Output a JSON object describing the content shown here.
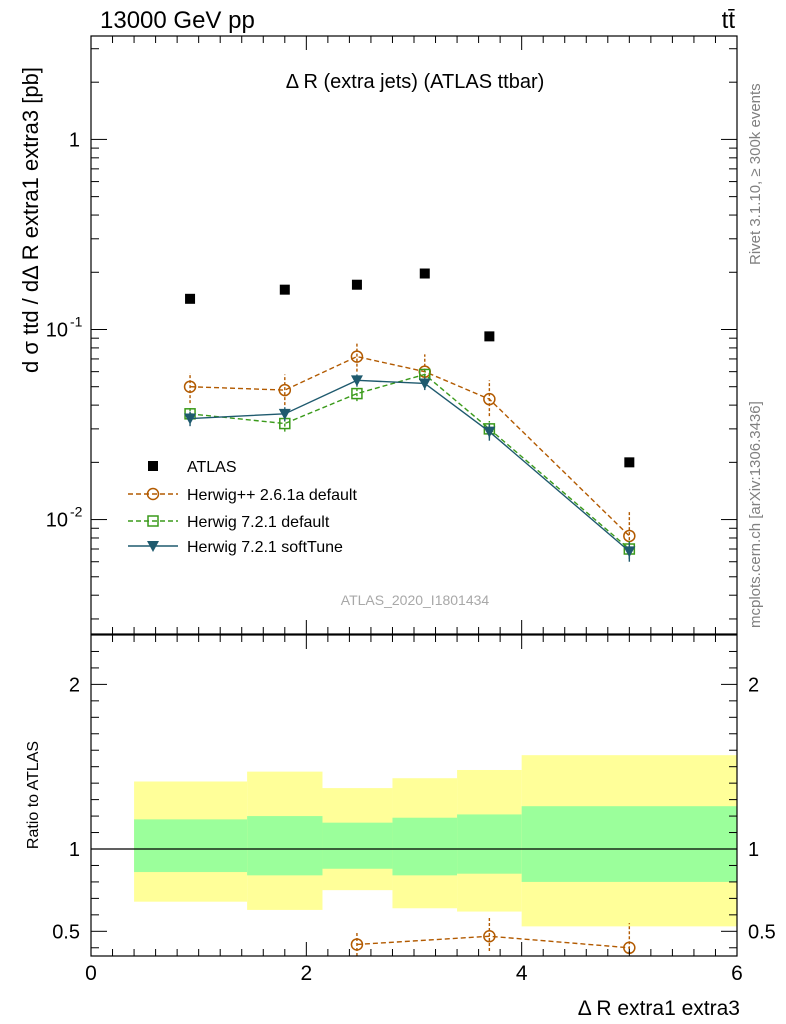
{
  "header": {
    "left": "13000 GeV pp",
    "right": "tt̄"
  },
  "side_text": {
    "rivet": "Rivet 3.1.10, ≥ 300k events",
    "mcplots": "mcplots.cern.ch [arXiv:1306.3436]"
  },
  "chart_data": {
    "type": "scatter",
    "title": "Δ R (extra jets) (ATLAS ttbar)",
    "watermark": "ATLAS_2020_I1801434",
    "xlabel": "Δ R extra1 extra3",
    "ylabel": "dσ ttd / dΔ R extra1 extra3 [pb]",
    "xlim": [
      0,
      6
    ],
    "ylim": [
      0.0025,
      3.5
    ],
    "y_scale": "log",
    "x_ticks": [
      "0",
      "2",
      "4",
      "6"
    ],
    "y_ticks": [
      "1",
      "10^-1",
      "10^-2"
    ],
    "legend_position": "left-middle",
    "bins": [
      [
        0.4,
        1.45
      ],
      [
        1.45,
        2.15
      ],
      [
        2.15,
        2.8
      ],
      [
        2.8,
        3.4
      ],
      [
        3.4,
        4.0
      ],
      [
        4.0,
        6.0
      ]
    ],
    "series": [
      {
        "name": "ATLAS",
        "color": "#000000",
        "marker": "filled-square",
        "line": "none",
        "x": [
          0.92,
          1.8,
          2.47,
          3.1,
          3.7,
          5.0
        ],
        "y": [
          0.145,
          0.162,
          0.172,
          0.197,
          0.092,
          0.02
        ]
      },
      {
        "name": "Herwig++ 2.6.1a default",
        "color": "#b25a00",
        "marker": "open-circle",
        "line": "dashed",
        "x": [
          0.92,
          1.8,
          2.47,
          3.1,
          3.7,
          5.0
        ],
        "y": [
          0.05,
          0.048,
          0.072,
          0.06,
          0.043,
          0.0082
        ],
        "yerr_low": [
          0.041,
          0.04,
          0.06,
          0.05,
          0.035,
          0.0065
        ],
        "yerr_high": [
          0.059,
          0.058,
          0.086,
          0.074,
          0.054,
          0.011
        ]
      },
      {
        "name": "Herwig 7.2.1 default",
        "color": "#3a9a1a",
        "marker": "open-square",
        "line": "dashed",
        "x": [
          0.92,
          1.8,
          2.47,
          3.1,
          3.7,
          5.0
        ],
        "y": [
          0.036,
          0.032,
          0.046,
          0.058,
          0.03,
          0.007
        ],
        "yerr_low": [
          0.033,
          0.029,
          0.042,
          0.053,
          0.027,
          0.0062
        ],
        "yerr_high": [
          0.039,
          0.035,
          0.05,
          0.063,
          0.033,
          0.0078
        ]
      },
      {
        "name": "Herwig 7.2.1 softTune",
        "color": "#1f5a6e",
        "marker": "filled-triangle-down",
        "line": "solid",
        "x": [
          0.92,
          1.8,
          2.47,
          3.1,
          3.7,
          5.0
        ],
        "y": [
          0.034,
          0.036,
          0.054,
          0.052,
          0.029,
          0.0068
        ],
        "yerr_low": [
          0.031,
          0.033,
          0.05,
          0.048,
          0.026,
          0.006
        ],
        "yerr_high": [
          0.037,
          0.039,
          0.058,
          0.056,
          0.032,
          0.0076
        ]
      }
    ],
    "ratio": {
      "ylabel": "Ratio to ATLAS",
      "ylim": [
        0.35,
        2.3
      ],
      "y_ticks": [
        "0.5",
        "1",
        "2"
      ],
      "band_inner": [
        [
          0.86,
          1.18
        ],
        [
          0.84,
          1.2
        ],
        [
          0.88,
          1.16
        ],
        [
          0.84,
          1.19
        ],
        [
          0.85,
          1.21
        ],
        [
          0.8,
          1.26
        ]
      ],
      "band_outer": [
        [
          0.68,
          1.41
        ],
        [
          0.63,
          1.47
        ],
        [
          0.75,
          1.37
        ],
        [
          0.64,
          1.43
        ],
        [
          0.62,
          1.48
        ],
        [
          0.53,
          1.57
        ]
      ],
      "band_colors": {
        "inner": "#9bff9b",
        "outer": "#ffff99"
      },
      "herwigpp": {
        "x": [
          2.47,
          3.7,
          5.0
        ],
        "y": [
          0.42,
          0.47,
          0.4
        ],
        "yerr_low": [
          0.35,
          0.38,
          0.33
        ],
        "yerr_high": [
          0.5,
          0.59,
          0.55
        ]
      }
    }
  }
}
